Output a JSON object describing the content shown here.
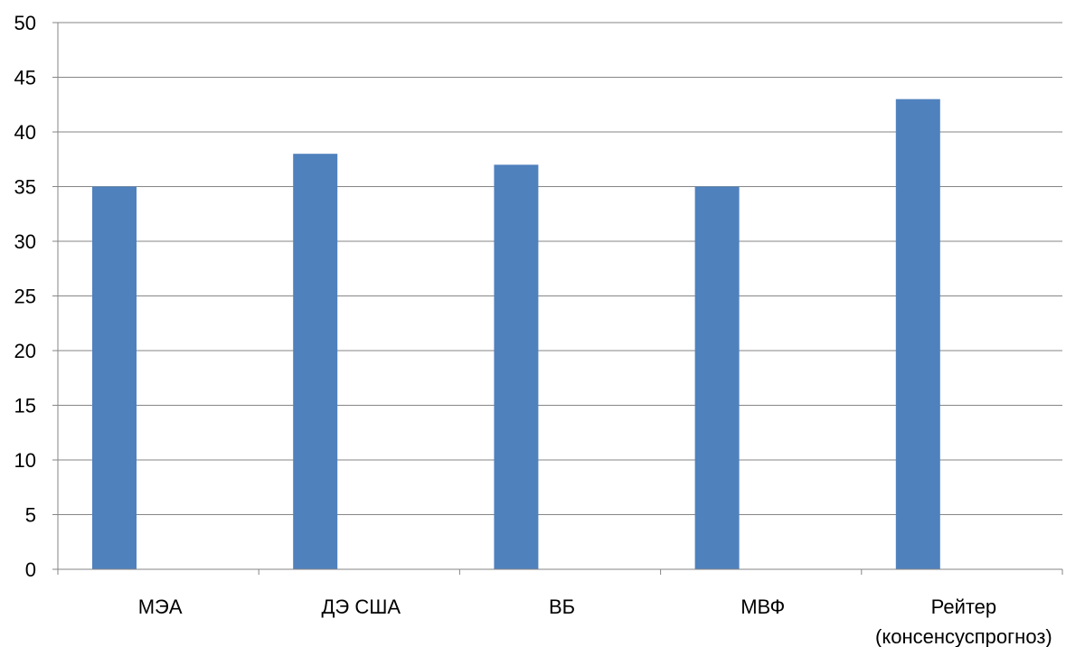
{
  "chart_data": {
    "type": "bar",
    "title": "",
    "xlabel": "",
    "ylabel": "",
    "ylim": [
      0,
      50
    ],
    "yticks": [
      0,
      5,
      10,
      15,
      20,
      25,
      30,
      35,
      40,
      45,
      50
    ],
    "grid": true,
    "categories": [
      [
        "МЭА"
      ],
      [
        "ДЭ США"
      ],
      [
        "ВБ"
      ],
      [
        "МВФ"
      ],
      [
        "Рейтер",
        "(консенсуспрогноз)"
      ]
    ],
    "values": [
      35,
      38,
      37,
      35,
      43
    ],
    "bar_color": "#4F81BD",
    "grid_color": "#868686"
  }
}
